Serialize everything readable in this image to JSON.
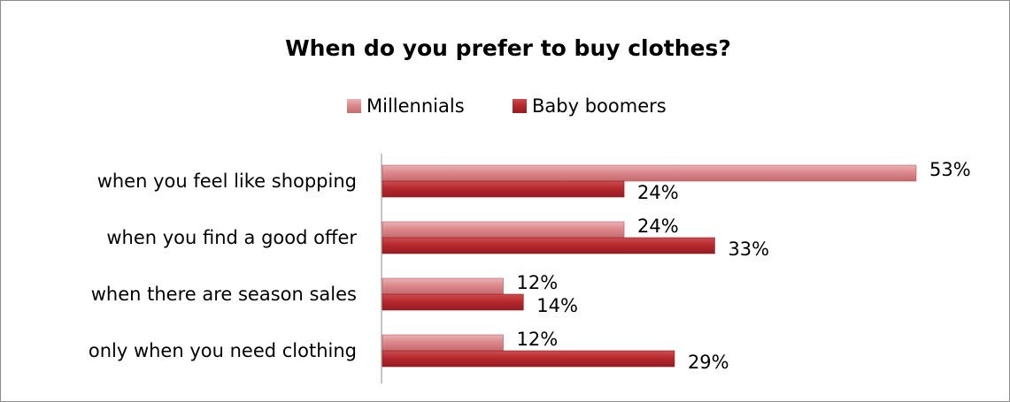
{
  "chart_data": {
    "type": "bar",
    "orientation": "horizontal",
    "title": "When do you prefer to buy clothes?",
    "xlabel": "",
    "ylabel": "",
    "xlim": [
      0,
      55
    ],
    "grid": false,
    "legend_position": "top",
    "value_suffix": "%",
    "categories": [
      "when you feel like shopping",
      "when you find a good offer",
      "when there are season sales",
      "only when you need clothing"
    ],
    "series": [
      {
        "name": "Millennials",
        "values": [
          53,
          24,
          12,
          12
        ],
        "color": "#d9868a",
        "color_dark": "#b95a5e"
      },
      {
        "name": "Baby boomers",
        "values": [
          24,
          33,
          14,
          29
        ],
        "color": "#b3282d",
        "color_dark": "#8a1a1e"
      }
    ]
  }
}
